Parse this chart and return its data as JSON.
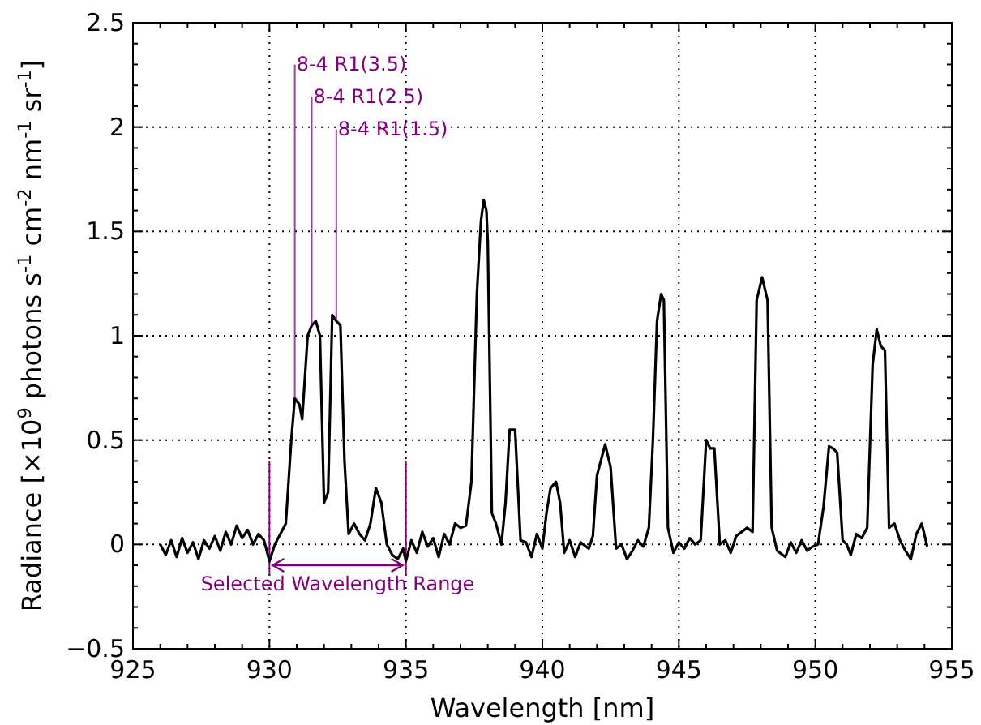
{
  "chart_data": {
    "type": "line",
    "xlabel": "Wavelength [nm]",
    "ylabel": "Radiance [×10$^{9}$ photons s$^{-1}$ cm$^{-2}$ nm$^{-1}$ sr$^{-1}$]",
    "xlim": [
      925,
      955
    ],
    "xticks": [
      925,
      930,
      935,
      940,
      945,
      950,
      955
    ],
    "ylim": [
      -0.5,
      2.5
    ],
    "yticks": [
      -0.5,
      0,
      0.5,
      1,
      1.5,
      2,
      2.5
    ],
    "grid": true,
    "marker": "none",
    "line_style": "solid",
    "series": [
      {
        "color": "#000000",
        "x": [
          926.0,
          926.2,
          926.4,
          926.6,
          926.8,
          927.0,
          927.2,
          927.4,
          927.6,
          927.8,
          928.0,
          928.2,
          928.4,
          928.6,
          928.8,
          929.0,
          929.2,
          929.4,
          929.6,
          929.8,
          930.0,
          930.2,
          930.4,
          930.6,
          930.8,
          930.93,
          931.1,
          931.2,
          931.4,
          931.55,
          931.7,
          931.85,
          932.0,
          932.15,
          932.3,
          932.45,
          932.6,
          932.75,
          932.9,
          933.1,
          933.3,
          933.5,
          933.7,
          933.9,
          934.1,
          934.3,
          934.5,
          934.7,
          934.9,
          935.0,
          935.2,
          935.4,
          935.6,
          935.8,
          936.0,
          936.2,
          936.4,
          936.6,
          936.8,
          937.0,
          937.2,
          937.4,
          937.6,
          937.75,
          937.85,
          937.95,
          938.0,
          938.15,
          938.3,
          938.5,
          938.65,
          938.8,
          939.0,
          939.2,
          939.4,
          939.6,
          939.8,
          940.0,
          940.15,
          940.3,
          940.5,
          940.65,
          940.8,
          941.0,
          941.2,
          941.4,
          941.7,
          941.85,
          942.0,
          942.3,
          942.5,
          942.7,
          942.9,
          943.1,
          943.3,
          943.5,
          943.7,
          943.9,
          944.05,
          944.2,
          944.35,
          944.45,
          944.6,
          944.8,
          945.0,
          945.2,
          945.4,
          945.6,
          945.8,
          946.0,
          946.15,
          946.3,
          946.5,
          946.7,
          946.9,
          947.1,
          947.3,
          947.5,
          947.7,
          947.85,
          948.05,
          948.25,
          948.4,
          948.6,
          948.9,
          949.1,
          949.3,
          949.5,
          949.7,
          949.9,
          950.1,
          950.3,
          950.5,
          950.65,
          950.8,
          951.0,
          951.15,
          951.3,
          951.5,
          951.7,
          951.9,
          952.1,
          952.25,
          952.4,
          952.55,
          952.7,
          952.9,
          953.1,
          953.3,
          953.5,
          953.7,
          953.9,
          954.1
        ],
        "values": [
          0.0,
          -0.05,
          0.02,
          -0.06,
          0.03,
          -0.04,
          0.01,
          -0.07,
          0.02,
          -0.02,
          0.04,
          -0.03,
          0.06,
          0.0,
          0.09,
          0.03,
          0.07,
          0.0,
          0.05,
          0.02,
          -0.08,
          0.0,
          0.05,
          0.1,
          0.5,
          0.7,
          0.67,
          0.6,
          1.0,
          1.05,
          1.07,
          1.0,
          0.2,
          0.25,
          1.1,
          1.07,
          1.05,
          0.4,
          0.05,
          0.1,
          0.05,
          0.02,
          0.1,
          0.27,
          0.2,
          0.0,
          -0.05,
          -0.07,
          -0.02,
          -0.08,
          0.02,
          -0.04,
          0.06,
          -0.01,
          0.03,
          -0.06,
          0.05,
          0.0,
          0.1,
          0.08,
          0.09,
          0.3,
          1.2,
          1.55,
          1.65,
          1.6,
          1.45,
          0.15,
          0.1,
          0.0,
          0.2,
          0.55,
          0.55,
          0.02,
          0.01,
          -0.06,
          0.05,
          -0.02,
          0.15,
          0.27,
          0.3,
          0.2,
          -0.04,
          0.02,
          -0.06,
          0.01,
          -0.02,
          0.04,
          0.33,
          0.48,
          0.37,
          -0.02,
          0.0,
          -0.07,
          -0.03,
          0.02,
          -0.01,
          0.08,
          0.5,
          1.07,
          1.2,
          1.17,
          0.08,
          -0.04,
          0.01,
          -0.02,
          0.03,
          0.0,
          0.02,
          0.5,
          0.46,
          0.46,
          0.0,
          0.02,
          -0.04,
          0.04,
          0.06,
          0.08,
          0.06,
          1.17,
          1.28,
          1.17,
          0.08,
          -0.03,
          -0.06,
          0.01,
          -0.04,
          0.02,
          -0.03,
          -0.01,
          0.0,
          0.18,
          0.47,
          0.46,
          0.44,
          0.02,
          0.0,
          -0.05,
          0.05,
          0.03,
          0.08,
          0.86,
          1.03,
          0.95,
          0.93,
          0.08,
          0.1,
          0.02,
          -0.03,
          -0.07,
          0.05,
          0.1,
          -0.01
        ]
      }
    ],
    "annotations": [
      {
        "text": "8-4 R1(3.5)",
        "x": 930.93,
        "y": 0.7
      },
      {
        "text": "8-4 R1(2.5)",
        "x": 931.55,
        "y": 1.05
      },
      {
        "text": "8-4 R1(1.5)",
        "x": 932.45,
        "y": 1.07
      },
      "Selected Wavelength Range"
    ],
    "ref_lines": [
      {
        "axis": "x",
        "value": 930,
        "color": "#800080"
      },
      {
        "axis": "x",
        "value": 935,
        "color": "#800080"
      }
    ]
  }
}
